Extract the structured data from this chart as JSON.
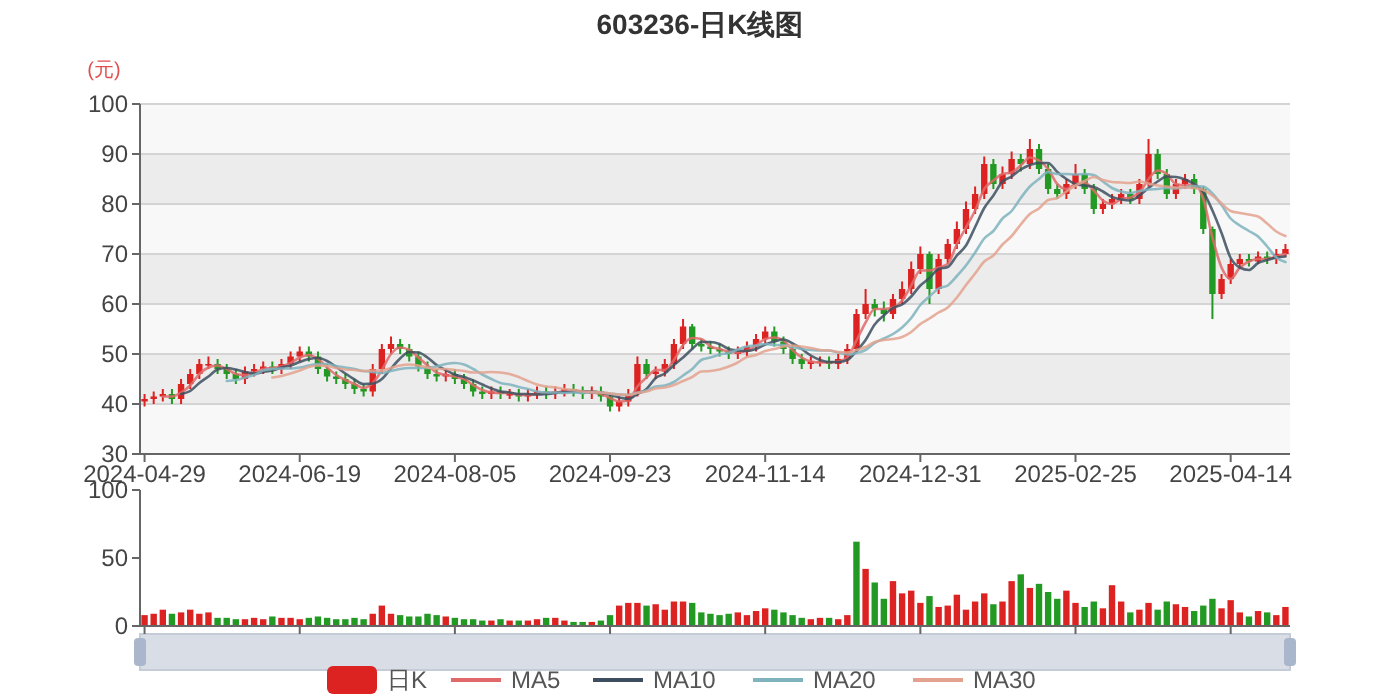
{
  "chart_data": [
    {
      "type": "candlestick",
      "title": "603236-日K线图",
      "ylabel": "(元)",
      "categories": [
        "2024-04-29",
        null,
        null,
        null,
        null,
        null,
        null,
        null,
        null,
        null,
        null,
        null,
        null,
        null,
        null,
        null,
        null,
        "2024-06-19",
        null,
        null,
        null,
        null,
        null,
        null,
        null,
        null,
        null,
        null,
        null,
        null,
        null,
        null,
        null,
        null,
        "2024-08-05",
        null,
        null,
        null,
        null,
        null,
        null,
        null,
        null,
        null,
        null,
        null,
        null,
        null,
        null,
        null,
        null,
        "2024-09-23",
        null,
        null,
        null,
        null,
        null,
        null,
        null,
        null,
        null,
        null,
        null,
        null,
        null,
        null,
        null,
        null,
        "2024-11-14",
        null,
        null,
        null,
        null,
        null,
        null,
        null,
        null,
        null,
        null,
        null,
        null,
        null,
        null,
        null,
        null,
        "2024-12-31",
        null,
        null,
        null,
        null,
        null,
        null,
        null,
        null,
        null,
        null,
        null,
        null,
        null,
        null,
        null,
        null,
        "2025-02-25",
        null,
        null,
        null,
        null,
        null,
        null,
        null,
        null,
        null,
        null,
        null,
        null,
        null,
        null,
        null,
        null,
        "2025-04-14",
        null,
        null,
        null,
        null,
        null,
        null
      ],
      "ylim": [
        30,
        100
      ],
      "yticks": [
        30,
        40,
        50,
        60,
        70,
        80,
        90,
        100
      ],
      "grid": "y",
      "legend": "bottom",
      "series": [
        {
          "name": "日K",
          "type": "candlestick",
          "color": "#dd2222",
          "colors": [
            "#dd2222",
            "#dd2222",
            "#dd2222",
            "#229922",
            "#dd2222",
            "#dd2222",
            "#dd2222",
            "#dd2222",
            "#229922",
            "#229922",
            "#229922",
            "#dd2222",
            "#dd2222",
            "#dd2222",
            "#229922",
            "#dd2222",
            "#dd2222",
            "#dd2222",
            "#229922",
            "#229922",
            "#229922",
            "#229922",
            "#229922",
            "#229922",
            "#229922",
            "#dd2222",
            "#dd2222",
            "#dd2222",
            "#229922",
            "#229922",
            "#229922",
            "#229922",
            "#229922",
            "#dd2222",
            "#229922",
            "#229922",
            "#229922",
            "#229922",
            "#dd2222",
            "#229922",
            "#dd2222",
            "#229922",
            "#dd2222",
            "#dd2222",
            "#229922",
            "#dd2222",
            "#dd2222",
            "#229922",
            "#229922",
            "#dd2222",
            "#229922",
            "#229922",
            "#dd2222",
            "#dd2222",
            "#dd2222",
            "#229922",
            "#dd2222",
            "#dd2222",
            "#dd2222",
            "#dd2222",
            "#229922",
            "#229922",
            "#229922",
            "#229922",
            "#229922",
            "#dd2222",
            "#dd2222",
            "#dd2222",
            "#dd2222",
            "#229922",
            "#229922",
            "#229922",
            "#229922",
            "#dd2222",
            "#dd2222",
            "#229922",
            "#dd2222",
            "#dd2222",
            "#dd2222",
            "#dd2222",
            "#229922",
            "#229922",
            "#dd2222",
            "#dd2222",
            "#dd2222",
            "#dd2222",
            "#229922",
            "#dd2222",
            "#dd2222",
            "#dd2222",
            "#dd2222",
            "#dd2222",
            "#dd2222",
            "#229922",
            "#dd2222",
            "#dd2222",
            "#229922",
            "#dd2222",
            "#229922",
            "#229922",
            "#229922",
            "#dd2222",
            "#dd2222",
            "#229922",
            "#229922",
            "#dd2222",
            "#dd2222",
            "#dd2222",
            "#229922",
            "#dd2222",
            "#dd2222",
            "#229922",
            "#229922",
            "#dd2222",
            "#dd2222",
            "#229922",
            "#229922",
            "#229922",
            "#dd2222",
            "#dd2222",
            "#dd2222",
            "#229922",
            "#dd2222",
            "#229922",
            "#dd2222",
            "#dd2222"
          ],
          "ohlc": [
            [
              40.5,
              42,
              39.5,
              41
            ],
            [
              41,
              42.5,
              40,
              41.5
            ],
            [
              41.5,
              43,
              40.5,
              42
            ],
            [
              42,
              43,
              40,
              41
            ],
            [
              41,
              45,
              40,
              44
            ],
            [
              44,
              47,
              43,
              46
            ],
            [
              46,
              49,
              45,
              48
            ],
            [
              48,
              49.5,
              47,
              48
            ],
            [
              48,
              49,
              46,
              47
            ],
            [
              47,
              48,
              45,
              46
            ],
            [
              46,
              47,
              44,
              45
            ],
            [
              45,
              47.5,
              44,
              46.5
            ],
            [
              46.5,
              48,
              45.5,
              47
            ],
            [
              47,
              48.5,
              46,
              47.5
            ],
            [
              47.5,
              48.5,
              46,
              47
            ],
            [
              47,
              49,
              46,
              48
            ],
            [
              48,
              50.5,
              47,
              49.5
            ],
            [
              49.5,
              51.5,
              48.5,
              50.5
            ],
            [
              50.5,
              51.5,
              48.5,
              49.5
            ],
            [
              49.5,
              50.5,
              46,
              47
            ],
            [
              47,
              48,
              44.5,
              45.5
            ],
            [
              45.5,
              46.5,
              44,
              45
            ],
            [
              45,
              46,
              43,
              44
            ],
            [
              44,
              45,
              42,
              43
            ],
            [
              43,
              44,
              41.5,
              42.5
            ],
            [
              42.5,
              48,
              41.5,
              47
            ],
            [
              47,
              52,
              46,
              51
            ],
            [
              51,
              53.5,
              50,
              52
            ],
            [
              52,
              53,
              50,
              51
            ],
            [
              51,
              52,
              48.5,
              49.5
            ],
            [
              49.5,
              50.5,
              46.5,
              47.5
            ],
            [
              47.5,
              48.5,
              45,
              46
            ],
            [
              46,
              47,
              44.5,
              45.5
            ],
            [
              45.5,
              47,
              44.5,
              46
            ],
            [
              46,
              47,
              44,
              45
            ],
            [
              45,
              46,
              43,
              44
            ],
            [
              44,
              45,
              41.5,
              42.5
            ],
            [
              42.5,
              43.5,
              41,
              42
            ],
            [
              42,
              43.5,
              41,
              42.5
            ],
            [
              42.5,
              43.5,
              41,
              42
            ],
            [
              42,
              43,
              41,
              42
            ],
            [
              42,
              43,
              40.5,
              41.5
            ],
            [
              41.5,
              43,
              40.5,
              42
            ],
            [
              42,
              43.5,
              41,
              42.5
            ],
            [
              42.5,
              43.5,
              41,
              42
            ],
            [
              42,
              43.5,
              41,
              42.5
            ],
            [
              42.5,
              44,
              41.5,
              43
            ],
            [
              43,
              44,
              41.5,
              42.5
            ],
            [
              42.5,
              43.5,
              41,
              42
            ],
            [
              42,
              43.5,
              41,
              42.5
            ],
            [
              42.5,
              43.5,
              40.5,
              41.5
            ],
            [
              41.5,
              42,
              38.5,
              39.5
            ],
            [
              39.5,
              41.5,
              38.5,
              40.5
            ],
            [
              40.5,
              43,
              39.5,
              42
            ],
            [
              42,
              49.5,
              41.5,
              48
            ],
            [
              48,
              49,
              45,
              46
            ],
            [
              46,
              47.5,
              45,
              46.5
            ],
            [
              46.5,
              49,
              45.5,
              48
            ],
            [
              48,
              53,
              47,
              52
            ],
            [
              52,
              57,
              51,
              55.5
            ],
            [
              55.5,
              56,
              51,
              52
            ],
            [
              52,
              53,
              50.5,
              51.5
            ],
            [
              51.5,
              52.5,
              50,
              51
            ],
            [
              51,
              52,
              49.5,
              50.5
            ],
            [
              50.5,
              51.5,
              49,
              50
            ],
            [
              50,
              51.5,
              49,
              50.5
            ],
            [
              50.5,
              52.5,
              49.5,
              51.5
            ],
            [
              51.5,
              54,
              50.5,
              53
            ],
            [
              53,
              55.5,
              52,
              54.5
            ],
            [
              54.5,
              55.5,
              51.5,
              52.5
            ],
            [
              52.5,
              53.5,
              50,
              51
            ],
            [
              51,
              52,
              48,
              49
            ],
            [
              49,
              50,
              47,
              48
            ],
            [
              48,
              49.5,
              47,
              48.5
            ],
            [
              48.5,
              49.5,
              47.5,
              48.5
            ],
            [
              48.5,
              49.5,
              47,
              48
            ],
            [
              48,
              50,
              47,
              49
            ],
            [
              49,
              52,
              48,
              51
            ],
            [
              51,
              59,
              50.5,
              58
            ],
            [
              58,
              63,
              57,
              60
            ],
            [
              60,
              61,
              57.5,
              59
            ],
            [
              59,
              60.5,
              56.5,
              58
            ],
            [
              58,
              62,
              57,
              61
            ],
            [
              61,
              64.5,
              60,
              63
            ],
            [
              63,
              68.5,
              62,
              67
            ],
            [
              67,
              71.5,
              66,
              70
            ],
            [
              70,
              70.5,
              60,
              63
            ],
            [
              63,
              70,
              62,
              69
            ],
            [
              69,
              73,
              68,
              72
            ],
            [
              72,
              76.5,
              71,
              75
            ],
            [
              75,
              80.5,
              74,
              79
            ],
            [
              79,
              83.5,
              78,
              82
            ],
            [
              82,
              89.5,
              81,
              88
            ],
            [
              88,
              89,
              83,
              84
            ],
            [
              84,
              87.5,
              83,
              86
            ],
            [
              86,
              90.5,
              85,
              89
            ],
            [
              89,
              90,
              86.5,
              88
            ],
            [
              88,
              93,
              87,
              91
            ],
            [
              91,
              92,
              86,
              87
            ],
            [
              87,
              88,
              82,
              83
            ],
            [
              83,
              84,
              81,
              82
            ],
            [
              82,
              85,
              81,
              84
            ],
            [
              84,
              88,
              83,
              86
            ],
            [
              86,
              87,
              82,
              83
            ],
            [
              83,
              84,
              78,
              79
            ],
            [
              79,
              81,
              78,
              80
            ],
            [
              80,
              82,
              79,
              81
            ],
            [
              81,
              83,
              80,
              82
            ],
            [
              82,
              83,
              80,
              81
            ],
            [
              81,
              85,
              80,
              84
            ],
            [
              84,
              93,
              83.5,
              90
            ],
            [
              90,
              91,
              85,
              86
            ],
            [
              86,
              87,
              81,
              82
            ],
            [
              82,
              85,
              81,
              84
            ],
            [
              84,
              86,
              83,
              85
            ],
            [
              85,
              86,
              82,
              83
            ],
            [
              83,
              83.5,
              74,
              75
            ],
            [
              75,
              75.5,
              57,
              62
            ],
            [
              62,
              66,
              61,
              65
            ],
            [
              65,
              69,
              64,
              68
            ],
            [
              68,
              70,
              67,
              69
            ],
            [
              69,
              70,
              67.5,
              68.5
            ],
            [
              68.5,
              70.5,
              68,
              69.5
            ],
            [
              69.5,
              70.5,
              68,
              69
            ],
            [
              69,
              71,
              68,
              70
            ],
            [
              70,
              72,
              69.5,
              71
            ]
          ]
        },
        {
          "name": "MA5",
          "type": "line",
          "color": "#e06a6a",
          "values": [
            null,
            null,
            41.5,
            41.5,
            42.3,
            43.7,
            46,
            47.3,
            47.7,
            47,
            46,
            45.8,
            46.2,
            47,
            47.2,
            47.5,
            48.2,
            49.3,
            49.8,
            49,
            47.3,
            45.8,
            44.8,
            44,
            43.2,
            44.2,
            46.8,
            50,
            51.3,
            50.8,
            49.3,
            47.7,
            46.3,
            45.8,
            45.5,
            45,
            43.8,
            42.8,
            42.3,
            42.2,
            42.2,
            41.8,
            41.8,
            42,
            42.2,
            42.3,
            42.5,
            42.7,
            42.5,
            42.3,
            42,
            41.2,
            40.5,
            40.7,
            43.5,
            45.3,
            46.8,
            46.8,
            48.8,
            51.8,
            53.2,
            53,
            51.5,
            51,
            50.5,
            50.3,
            50.7,
            51.7,
            53,
            53.3,
            52.7,
            50.8,
            49.3,
            48.5,
            48.3,
            48.3,
            48.5,
            49.3,
            52.7,
            56.3,
            59,
            59,
            59.3,
            60.7,
            63.7,
            66.7,
            66.7,
            67.3,
            68,
            72,
            75.3,
            78.7,
            83,
            84.7,
            86,
            86.3,
            87.7,
            89.3,
            88.7,
            87,
            84,
            83,
            84,
            84.3,
            82.7,
            80.7,
            80,
            81,
            81.3,
            82.3,
            85,
            86.7,
            86,
            84,
            83.7,
            84,
            81,
            73.3,
            67.3,
            65,
            67.3,
            68.5,
            69,
            69,
            69.5,
            70
          ]
        },
        {
          "name": "MA10",
          "type": "line",
          "color": "#3d4f5f",
          "values": [
            null,
            null,
            null,
            null,
            42,
            42.6,
            44.2,
            45.5,
            46.9,
            47.2,
            46.9,
            46.4,
            46.1,
            46.4,
            46.7,
            47.3,
            47.7,
            48.4,
            49,
            49.2,
            48.6,
            47.4,
            46.1,
            44.9,
            44,
            44.1,
            45,
            47.1,
            49.1,
            50.4,
            50.3,
            49.3,
            47.8,
            46.8,
            45.9,
            45.4,
            44.7,
            43.9,
            43.1,
            42.5,
            42.3,
            42,
            42,
            41.9,
            42,
            42.2,
            42.4,
            42.5,
            42.5,
            42.5,
            42.3,
            41.8,
            41.3,
            41,
            42,
            43,
            45.2,
            46.1,
            47.8,
            49.3,
            51,
            52.4,
            52.4,
            52,
            51,
            50.7,
            50.6,
            51,
            51.9,
            52.5,
            52.9,
            52.1,
            51,
            49.7,
            48.8,
            48.4,
            48.4,
            48.8,
            50.6,
            52.8,
            55.9,
            57.7,
            59.2,
            59.9,
            61.5,
            63.7,
            65.2,
            67,
            67.4,
            69.7,
            71.7,
            75.4,
            79.2,
            81.7,
            84.5,
            85.5,
            86.9,
            87.8,
            88.2,
            88.2,
            86.4,
            85,
            84,
            83.7,
            83.4,
            82.5,
            81.4,
            80.9,
            80.7,
            81.7,
            83.2,
            84.5,
            85.5,
            85.4,
            84.9,
            84,
            82.4,
            78.7,
            74.2,
            69.2,
            67.3,
            66.8,
            68.2,
            68.8,
            69.3,
            69.5
          ]
        },
        {
          "name": "MA20",
          "type": "line",
          "color": "#7fb3be",
          "values": [
            null,
            null,
            null,
            null,
            null,
            null,
            null,
            null,
            null,
            44.6,
            44.8,
            45.3,
            45.8,
            46.7,
            47,
            47.1,
            47.1,
            47.3,
            47.7,
            48,
            48,
            47.6,
            47.3,
            47,
            46.6,
            46.4,
            46.2,
            46.6,
            47,
            47.2,
            47.2,
            47.2,
            47.5,
            48,
            48.2,
            47.9,
            47,
            45.9,
            45,
            44.2,
            43.9,
            43.4,
            43,
            42.5,
            42.3,
            42.3,
            42.2,
            42.3,
            42.2,
            42.3,
            42.3,
            42.1,
            41.9,
            41.8,
            42.3,
            42.7,
            43.5,
            43.7,
            44.4,
            45.7,
            47,
            48.8,
            49.3,
            49.9,
            50.2,
            50.9,
            51.5,
            51.7,
            52,
            51.8,
            51.8,
            51.4,
            51,
            50.8,
            50.7,
            50.7,
            50.3,
            49.9,
            50.2,
            50.8,
            52.2,
            53.1,
            54,
            55.3,
            57.2,
            59.8,
            61.5,
            63.1,
            63.7,
            65.6,
            67.7,
            70.3,
            73.1,
            74.6,
            77.1,
            78.6,
            81.2,
            83.5,
            85,
            86.4,
            86,
            86,
            85.9,
            86,
            85.8,
            84.5,
            83.2,
            82.5,
            82.2,
            82.6,
            82.9,
            83,
            83.2,
            83.1,
            83.3,
            83.6,
            83.5,
            82.1,
            79.8,
            77.1,
            75.7,
            74.6,
            73.5,
            71.5,
            69.3,
            68.4
          ]
        },
        {
          "name": "MA30",
          "type": "line",
          "color": "#e3a28e",
          "values": [
            null,
            null,
            null,
            null,
            null,
            null,
            null,
            null,
            null,
            null,
            null,
            null,
            null,
            null,
            45.3,
            45.6,
            46.1,
            46.7,
            47.4,
            47.7,
            47.6,
            47.2,
            46.9,
            46.8,
            46.6,
            46.7,
            46.7,
            47.2,
            47.7,
            47.9,
            47.7,
            47.3,
            47,
            47,
            46.8,
            46.6,
            46.3,
            46.3,
            46.4,
            46.3,
            46,
            45.4,
            44.6,
            43.9,
            43.5,
            43.3,
            43,
            42.8,
            42.5,
            42.4,
            42.3,
            42.1,
            41.9,
            41.8,
            42.2,
            42.5,
            43.1,
            43.3,
            43.8,
            44.6,
            45.4,
            46.5,
            46.6,
            46.9,
            47.5,
            48.3,
            49.4,
            49.8,
            50.6,
            51,
            51.5,
            51.7,
            51.5,
            51.2,
            50.8,
            50.7,
            50.4,
            50.3,
            50.8,
            51.4,
            52.4,
            52.8,
            53,
            53.4,
            54.4,
            56,
            57.1,
            58.3,
            59.3,
            61.3,
            63.8,
            66.1,
            68.5,
            69.7,
            71.9,
            73.6,
            75.9,
            78,
            79.1,
            80.8,
            81.2,
            82.5,
            83.7,
            84.6,
            85.4,
            84.8,
            84.4,
            84.3,
            84.2,
            84.5,
            84.1,
            83.7,
            83.5,
            83.3,
            83.3,
            83.2,
            82.8,
            81.7,
            80.1,
            78.6,
            78.2,
            77.9,
            77.5,
            76.1,
            74.5,
            73.6
          ]
        }
      ]
    },
    {
      "type": "bar",
      "tick_labels": "y",
      "categories": [
        "2024-04-29",
        null,
        null,
        null,
        null,
        null,
        null,
        null,
        null,
        null,
        null,
        null,
        null,
        null,
        null,
        null,
        null,
        "2024-06-19",
        null,
        null,
        null,
        null,
        null,
        null,
        null,
        null,
        null,
        null,
        null,
        null,
        null,
        null,
        null,
        null,
        "2024-08-05",
        null,
        null,
        null,
        null,
        null,
        null,
        null,
        null,
        null,
        null,
        null,
        null,
        null,
        null,
        null,
        null,
        "2024-09-23",
        null,
        null,
        null,
        null,
        null,
        null,
        null,
        null,
        null,
        null,
        null,
        null,
        null,
        null,
        null,
        null,
        "2024-11-14",
        null,
        null,
        null,
        null,
        null,
        null,
        null,
        null,
        null,
        null,
        null,
        null,
        null,
        null,
        null,
        null,
        "2024-12-31",
        null,
        null,
        null,
        null,
        null,
        null,
        null,
        null,
        null,
        null,
        null,
        null,
        null,
        null,
        null,
        null,
        "2025-02-25",
        null,
        null,
        null,
        null,
        null,
        null,
        null,
        null,
        null,
        null,
        null,
        null,
        null,
        null,
        null,
        null,
        "2025-04-14",
        null,
        null,
        null,
        null,
        null,
        null
      ],
      "ylim": [
        0,
        100
      ],
      "yticks": [
        0,
        50,
        100
      ],
      "values": [
        8,
        9,
        12,
        9,
        10,
        12,
        9,
        10,
        6,
        6,
        5,
        5,
        6,
        5,
        7,
        6,
        6,
        5,
        6,
        7,
        6,
        5,
        5,
        6,
        5,
        9,
        15,
        9,
        8,
        7,
        7,
        9,
        8,
        7,
        6,
        5,
        5,
        4,
        4,
        5,
        4,
        4,
        4,
        5,
        6,
        6,
        4,
        3,
        3,
        3,
        4,
        8,
        15,
        17,
        17,
        15,
        16,
        12,
        18,
        18,
        17,
        10,
        9,
        8,
        9,
        10,
        8,
        11,
        13,
        12,
        10,
        8,
        6,
        5,
        6,
        6,
        5,
        8,
        62,
        42,
        32,
        20,
        33,
        24,
        26,
        17,
        22,
        14,
        15,
        23,
        12,
        18,
        24,
        16,
        18,
        33,
        38,
        28,
        31,
        25,
        20,
        26,
        17,
        14,
        18,
        13,
        30,
        18,
        10,
        12,
        17,
        12,
        18,
        16,
        14,
        11,
        15,
        20,
        13,
        19,
        10,
        7,
        11,
        10,
        8,
        14
      ],
      "colors": [
        "#dd2222",
        "#dd2222",
        "#dd2222",
        "#229922",
        "#dd2222",
        "#dd2222",
        "#dd2222",
        "#dd2222",
        "#229922",
        "#229922",
        "#229922",
        "#dd2222",
        "#dd2222",
        "#dd2222",
        "#229922",
        "#dd2222",
        "#dd2222",
        "#dd2222",
        "#229922",
        "#229922",
        "#229922",
        "#229922",
        "#229922",
        "#229922",
        "#229922",
        "#dd2222",
        "#dd2222",
        "#dd2222",
        "#229922",
        "#229922",
        "#229922",
        "#229922",
        "#229922",
        "#dd2222",
        "#229922",
        "#229922",
        "#229922",
        "#229922",
        "#dd2222",
        "#229922",
        "#dd2222",
        "#229922",
        "#dd2222",
        "#dd2222",
        "#229922",
        "#dd2222",
        "#dd2222",
        "#229922",
        "#229922",
        "#dd2222",
        "#229922",
        "#229922",
        "#dd2222",
        "#dd2222",
        "#dd2222",
        "#229922",
        "#dd2222",
        "#dd2222",
        "#dd2222",
        "#dd2222",
        "#229922",
        "#229922",
        "#229922",
        "#229922",
        "#229922",
        "#dd2222",
        "#dd2222",
        "#dd2222",
        "#dd2222",
        "#229922",
        "#229922",
        "#229922",
        "#229922",
        "#dd2222",
        "#dd2222",
        "#229922",
        "#dd2222",
        "#dd2222",
        "#229922",
        "#dd2222",
        "#229922",
        "#229922",
        "#dd2222",
        "#dd2222",
        "#dd2222",
        "#dd2222",
        "#229922",
        "#dd2222",
        "#dd2222",
        "#dd2222",
        "#dd2222",
        "#dd2222",
        "#dd2222",
        "#229922",
        "#dd2222",
        "#dd2222",
        "#229922",
        "#dd2222",
        "#229922",
        "#229922",
        "#229922",
        "#dd2222",
        "#dd2222",
        "#229922",
        "#229922",
        "#dd2222",
        "#dd2222",
        "#dd2222",
        "#229922",
        "#dd2222",
        "#dd2222",
        "#229922",
        "#229922",
        "#dd2222",
        "#dd2222",
        "#229922",
        "#229922",
        "#229922",
        "#dd2222",
        "#dd2222",
        "#dd2222",
        "#229922",
        "#dd2222",
        "#229922",
        "#dd2222",
        "#dd2222"
      ]
    }
  ]
}
